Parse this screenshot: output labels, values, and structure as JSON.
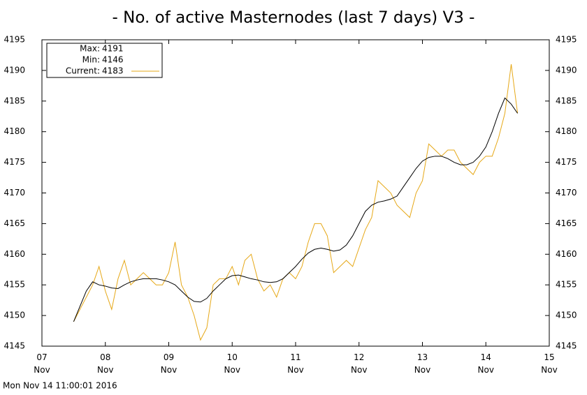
{
  "chart_data": {
    "type": "line",
    "title": "- No. of active Masternodes (last 7 days) V3 -",
    "footer": "Mon Nov 14 11:00:01 2016",
    "stats": [
      {
        "label": "Max:",
        "value": 4191
      },
      {
        "label": "Min:",
        "value": 4146
      },
      {
        "label": "Current:",
        "value": 4183
      }
    ],
    "x": [
      7.5,
      7.6,
      7.7,
      7.8,
      7.9,
      8.0,
      8.1,
      8.2,
      8.3,
      8.4,
      8.5,
      8.6,
      8.7,
      8.8,
      8.9,
      9.0,
      9.1,
      9.2,
      9.3,
      9.4,
      9.5,
      9.6,
      9.7,
      9.8,
      9.9,
      10.0,
      10.1,
      10.2,
      10.3,
      10.4,
      10.5,
      10.6,
      10.7,
      10.8,
      10.9,
      11.0,
      11.1,
      11.2,
      11.3,
      11.4,
      11.5,
      11.6,
      11.7,
      11.8,
      11.9,
      12.0,
      12.1,
      12.2,
      12.3,
      12.4,
      12.5,
      12.6,
      12.7,
      12.8,
      12.9,
      13.0,
      13.1,
      13.2,
      13.3,
      13.4,
      13.5,
      13.6,
      13.7,
      13.8,
      13.9,
      14.0,
      14.1,
      14.2,
      14.3,
      14.4,
      14.5
    ],
    "series": [
      {
        "color": "#e6a817",
        "values": [
          4149,
          4151,
          4153,
          4155,
          4158,
          4154,
          4151,
          4156,
          4159,
          4155,
          4156,
          4157,
          4156,
          4155,
          4155,
          4157,
          4162,
          4155,
          4153,
          4150,
          4146,
          4148,
          4155,
          4156,
          4156,
          4158,
          4155,
          4159,
          4160,
          4156,
          4154,
          4155,
          4153,
          4156,
          4157,
          4156,
          4158,
          4162,
          4165,
          4165,
          4163,
          4157,
          4158,
          4159,
          4158,
          4161,
          4164,
          4166,
          4172,
          4171,
          4170,
          4168,
          4167,
          4166,
          4170,
          4172,
          4178,
          4177,
          4176,
          4177,
          4177,
          4175,
          4174,
          4173,
          4175,
          4176,
          4176,
          4179,
          4183,
          4191,
          4183
        ]
      },
      {
        "color": "#000000",
        "values": [
          4149,
          4151.5,
          4154,
          4155.5,
          4155,
          4154.8,
          4154.5,
          4154.4,
          4155,
          4155.5,
          4155.8,
          4156,
          4156,
          4156,
          4155.8,
          4155.5,
          4155,
          4154,
          4153,
          4152.3,
          4152.2,
          4152.8,
          4154,
          4155,
          4156,
          4156.5,
          4156.6,
          4156.3,
          4156,
          4155.8,
          4155.5,
          4155.4,
          4155.5,
          4156,
          4157,
          4158,
          4159.2,
          4160.2,
          4160.8,
          4161,
          4160.8,
          4160.5,
          4160.7,
          4161.5,
          4163,
          4165,
          4167,
          4168,
          4168.5,
          4168.7,
          4169,
          4169.5,
          4171,
          4172.5,
          4174,
          4175.2,
          4175.8,
          4176,
          4176,
          4175.6,
          4175,
          4174.6,
          4174.6,
          4175,
          4176,
          4177.5,
          4180,
          4183,
          4185.5,
          4184.5,
          4183
        ]
      }
    ],
    "xlim": [
      7,
      15
    ],
    "xticks": [
      {
        "value": 7,
        "label": "07\nNov"
      },
      {
        "value": 8,
        "label": "08\nNov"
      },
      {
        "value": 9,
        "label": "09\nNov"
      },
      {
        "value": 10,
        "label": "10\nNov"
      },
      {
        "value": 11,
        "label": "11\nNov"
      },
      {
        "value": 12,
        "label": "12\nNov"
      },
      {
        "value": 13,
        "label": "13\nNov"
      },
      {
        "value": 14,
        "label": "14\nNov"
      },
      {
        "value": 15,
        "label": "15\nNov"
      }
    ],
    "ylim": [
      4145,
      4195
    ],
    "yticks": [
      4145,
      4150,
      4155,
      4160,
      4165,
      4170,
      4175,
      4180,
      4185,
      4190,
      4195
    ]
  }
}
